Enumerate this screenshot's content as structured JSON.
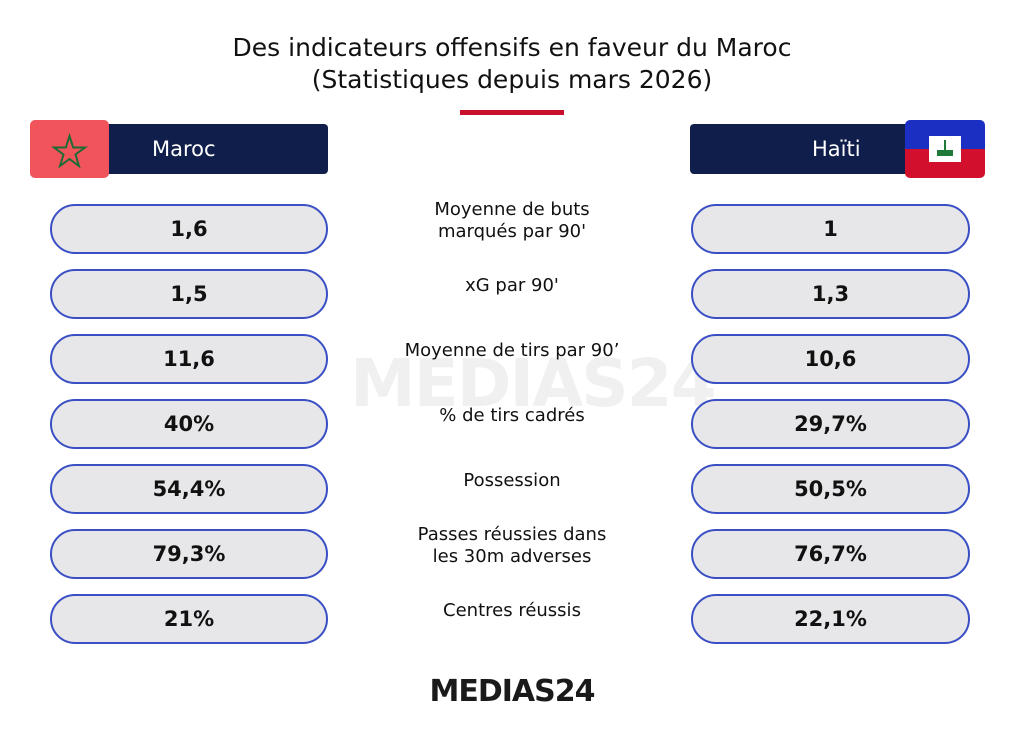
{
  "header": {
    "title": "Des indicateurs offensifs en faveur du Maroc",
    "subtitle": "(Statistiques depuis mars 2026)"
  },
  "teams": {
    "left": "Maroc",
    "right": "Haïti"
  },
  "rows": [
    {
      "label": [
        "Moyenne de buts",
        "marqués par 90'"
      ],
      "left": "1,6",
      "right": "1"
    },
    {
      "label": [
        "xG par 90'"
      ],
      "left": "1,5",
      "right": "1,3"
    },
    {
      "label": [
        "Moyenne de tirs par 90’"
      ],
      "left": "11,6",
      "right": "10,6"
    },
    {
      "label": [
        "% de tirs cadrés"
      ],
      "left": "40%",
      "right": "29,7%"
    },
    {
      "label": [
        "Possession"
      ],
      "left": "54,4%",
      "right": "50,5%"
    },
    {
      "label": [
        "Passes réussies dans",
        "les 30m adverses"
      ],
      "left": "79,3%",
      "right": "76,7%"
    },
    {
      "label": [
        "Centres réussis"
      ],
      "left": "21%",
      "right": "22,1%"
    }
  ],
  "footer": {
    "logo": "MEDIAS24"
  }
}
